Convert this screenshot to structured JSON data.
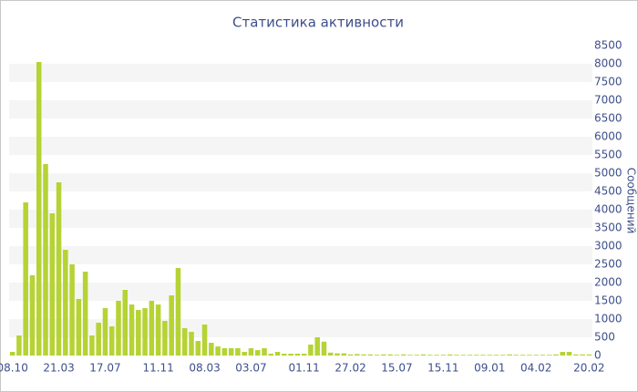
{
  "chart_data": {
    "type": "bar",
    "title": "Статистика активности",
    "y_label": "Сообщений",
    "color": "#b5d334",
    "categories": [
      "08.10",
      null,
      null,
      null,
      null,
      null,
      null,
      "21.03",
      null,
      null,
      null,
      null,
      null,
      null,
      "17.07",
      null,
      null,
      null,
      null,
      null,
      null,
      null,
      "11.11",
      null,
      null,
      null,
      null,
      null,
      null,
      "08.03",
      null,
      null,
      null,
      null,
      null,
      null,
      "03.07",
      null,
      null,
      null,
      null,
      null,
      null,
      null,
      "01.11",
      null,
      null,
      null,
      null,
      null,
      null,
      "27.02",
      null,
      null,
      null,
      null,
      null,
      null,
      "15.07",
      null,
      null,
      null,
      null,
      null,
      null,
      "15.11",
      null,
      null,
      null,
      null,
      null,
      null,
      "09.01",
      null,
      null,
      null,
      null,
      null,
      null,
      "04.02",
      null,
      null,
      null,
      null,
      null,
      null,
      null,
      "20.02"
    ],
    "values": [
      100,
      550,
      4200,
      2200,
      8050,
      5250,
      3900,
      4750,
      2900,
      2500,
      1550,
      2300,
      550,
      900,
      1300,
      800,
      1500,
      1800,
      1400,
      1250,
      1300,
      1500,
      1400,
      950,
      1650,
      2400,
      750,
      650,
      400,
      850,
      350,
      250,
      200,
      200,
      200,
      100,
      200,
      150,
      200,
      50,
      100,
      50,
      50,
      50,
      50,
      300,
      500,
      380,
      80,
      60,
      60,
      30,
      40,
      30,
      30,
      20,
      30,
      30,
      20,
      30,
      20,
      20,
      30,
      20,
      20,
      20,
      30,
      20,
      20,
      20,
      20,
      20,
      20,
      20,
      20,
      30,
      20,
      20,
      20,
      20,
      20,
      20,
      30,
      100,
      100,
      30,
      30,
      30
    ],
    "ylim": [
      0,
      8500
    ],
    "yticks": [
      0,
      500,
      1000,
      1500,
      2000,
      2500,
      3000,
      3500,
      4000,
      4500,
      5000,
      5500,
      6000,
      6500,
      7000,
      7500,
      8000,
      8500
    ]
  }
}
